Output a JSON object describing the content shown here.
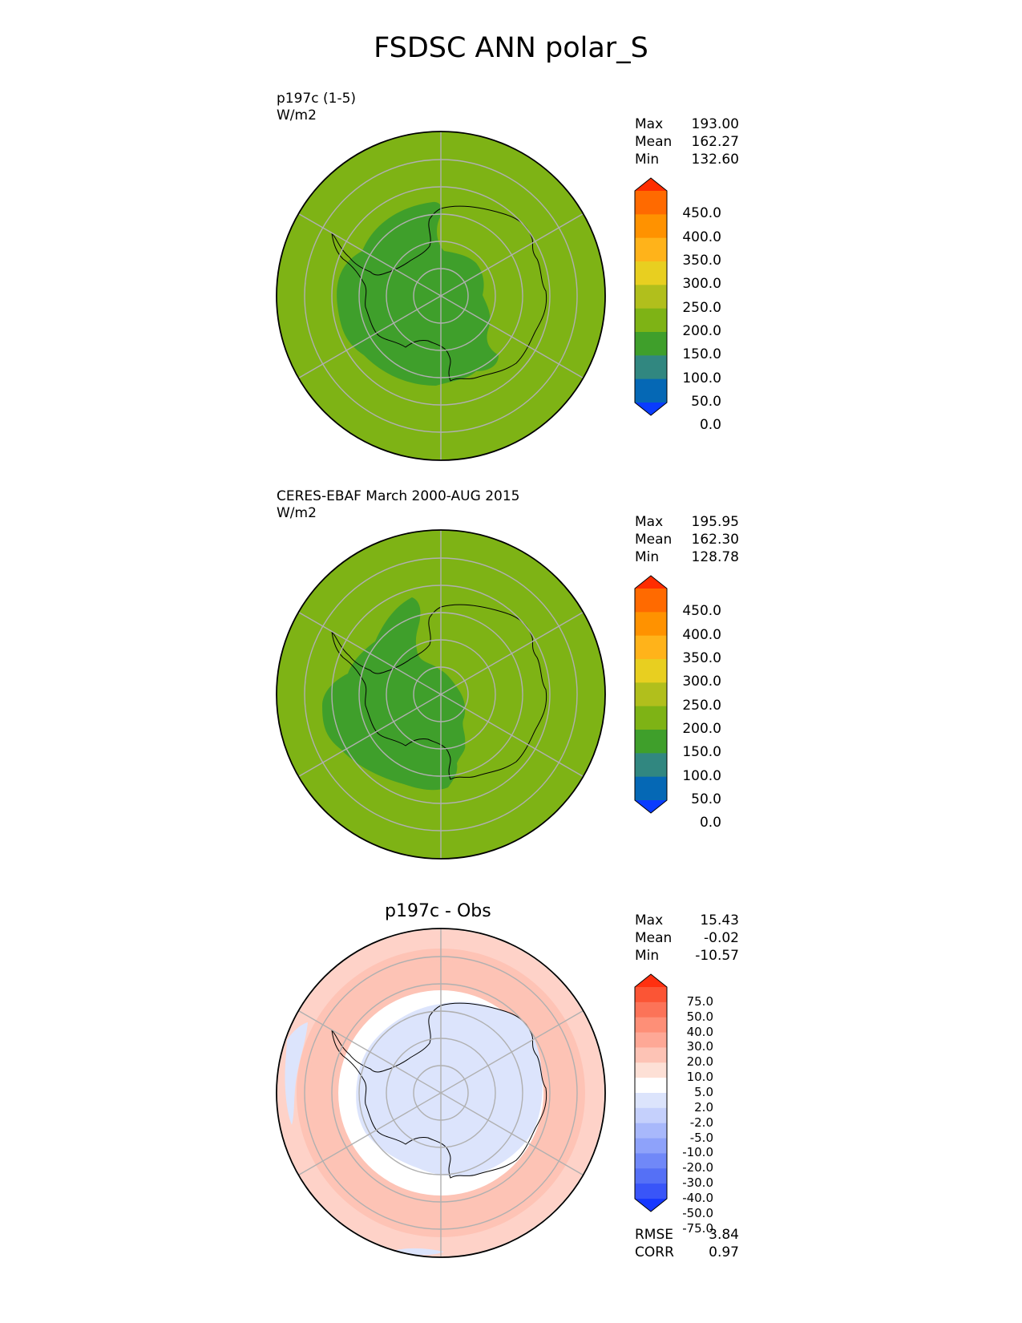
{
  "title": "FSDSC ANN polar_S",
  "panels": [
    {
      "id": "test",
      "label_line1": "p197c (1-5)",
      "label_line2": "W/m2",
      "stats": [
        {
          "key": "Max",
          "value": "193.00"
        },
        {
          "key": "Mean",
          "value": "162.27"
        },
        {
          "key": "Min",
          "value": "132.60"
        }
      ]
    },
    {
      "id": "ref",
      "label_line1": "CERES-EBAF March 2000-AUG 2015",
      "label_line2": "W/m2",
      "stats": [
        {
          "key": "Max",
          "value": "195.95"
        },
        {
          "key": "Mean",
          "value": "162.30"
        },
        {
          "key": "Min",
          "value": "128.78"
        }
      ]
    },
    {
      "id": "diff",
      "title": "p197c - Obs",
      "stats": [
        {
          "key": "Max",
          "value": "15.43"
        },
        {
          "key": "Mean",
          "value": "-0.02"
        },
        {
          "key": "Min",
          "value": "-10.57"
        }
      ],
      "metrics": [
        {
          "key": "RMSE",
          "value": "3.84"
        },
        {
          "key": "CORR",
          "value": "0.97"
        }
      ]
    }
  ],
  "colorbars": {
    "main": {
      "ticks": [
        "450.0",
        "400.0",
        "350.0",
        "300.0",
        "250.0",
        "200.0",
        "150.0",
        "100.0",
        "50.0",
        "0.0"
      ],
      "colors": [
        "#ff2d00",
        "#ff6a00",
        "#ff9200",
        "#ffb31a",
        "#e8cf20",
        "#b1bf1c",
        "#7eb315",
        "#3f9f2b",
        "#318780",
        "#0568b5",
        "#0a3cff"
      ]
    },
    "diff": {
      "ticks": [
        "75.0",
        "50.0",
        "40.0",
        "30.0",
        "20.0",
        "10.0",
        "5.0",
        "2.0",
        "-2.0",
        "-5.0",
        "-10.0",
        "-20.0",
        "-30.0",
        "-40.0",
        "-50.0",
        "-75.0"
      ],
      "colors": [
        "#ff3010",
        "#fb5535",
        "#fc7358",
        "#fe8f77",
        "#fea896",
        "#fdc3b5",
        "#fde0d6",
        "#ffffff",
        "#dce4fc",
        "#c5d0fc",
        "#a8b8fb",
        "#8ea2fa",
        "#7088f8",
        "#5570f6",
        "#3955f8",
        "#1738ff"
      ]
    }
  },
  "map_colors": {
    "outer_field": "#7eb315",
    "inner_field": "#3f9f2b",
    "diff_positive": "#fdc3b5",
    "diff_negative": "#dce4fc",
    "grid": "#b0b0b0"
  }
}
